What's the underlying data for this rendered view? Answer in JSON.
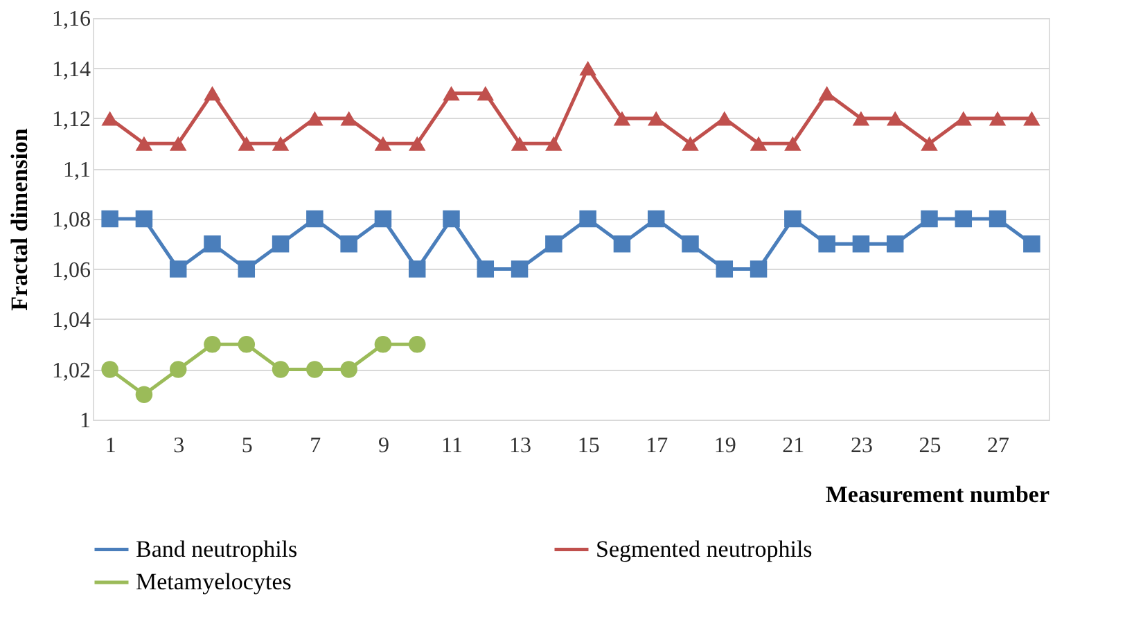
{
  "chart_data": {
    "type": "line",
    "xlabel": "Measurement number",
    "ylabel": "Fractal dimension",
    "x": [
      1,
      2,
      3,
      4,
      5,
      6,
      7,
      8,
      9,
      10,
      11,
      12,
      13,
      14,
      15,
      16,
      17,
      18,
      19,
      20,
      21,
      22,
      23,
      24,
      25,
      26,
      27,
      28
    ],
    "xlim": [
      0.5,
      28.5
    ],
    "xticks": [
      1,
      3,
      5,
      7,
      9,
      11,
      13,
      15,
      17,
      19,
      21,
      23,
      25,
      27
    ],
    "ylim": [
      1,
      1.16
    ],
    "yticks": [
      {
        "value": 1,
        "label": "1"
      },
      {
        "value": 1.02,
        "label": "1,02"
      },
      {
        "value": 1.04,
        "label": "1,04"
      },
      {
        "value": 1.06,
        "label": "1,06"
      },
      {
        "value": 1.08,
        "label": "1,08"
      },
      {
        "value": 1.1,
        "label": "1,1"
      },
      {
        "value": 1.12,
        "label": "1,12"
      },
      {
        "value": 1.14,
        "label": "1,14"
      },
      {
        "value": 1.16,
        "label": "1,16"
      }
    ],
    "grid": "y",
    "legend": "bottom",
    "line_style": "solid",
    "series": [
      {
        "name": "Band neutrophils",
        "color": "#4a7ebb",
        "marker": "square",
        "values": [
          1.08,
          1.08,
          1.06,
          1.07,
          1.06,
          1.07,
          1.08,
          1.07,
          1.08,
          1.06,
          1.08,
          1.06,
          1.06,
          1.07,
          1.08,
          1.07,
          1.08,
          1.07,
          1.06,
          1.06,
          1.08,
          1.07,
          1.07,
          1.07,
          1.08,
          1.08,
          1.08,
          1.07
        ]
      },
      {
        "name": "Segmented neutrophils",
        "color": "#c0504d",
        "marker": "triangle",
        "values": [
          1.12,
          1.11,
          1.11,
          1.13,
          1.11,
          1.11,
          1.12,
          1.12,
          1.11,
          1.11,
          1.13,
          1.13,
          1.11,
          1.11,
          1.14,
          1.12,
          1.12,
          1.11,
          1.12,
          1.11,
          1.11,
          1.13,
          1.12,
          1.12,
          1.11,
          1.12,
          1.12,
          1.12
        ]
      },
      {
        "name": "Metamyelocytes",
        "color": "#9bbb59",
        "marker": "circle",
        "values": [
          1.02,
          1.01,
          1.02,
          1.03,
          1.03,
          1.02,
          1.02,
          1.02,
          1.03,
          1.03,
          null,
          null,
          null,
          null,
          null,
          null,
          null,
          null,
          null,
          null,
          null,
          null,
          null,
          null,
          null,
          null,
          null,
          null
        ]
      }
    ]
  }
}
